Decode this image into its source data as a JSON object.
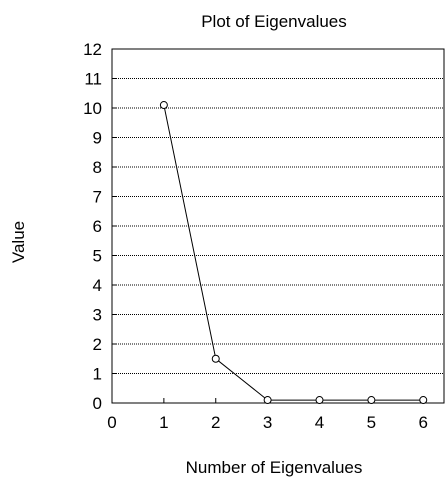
{
  "chart_data": {
    "type": "line",
    "title": "Plot of Eigenvalues",
    "xlabel": "Number of Eigenvalues",
    "ylabel": "Value",
    "xlim": [
      0,
      6.4
    ],
    "ylim": [
      0,
      12
    ],
    "xticks": [
      0,
      1,
      2,
      3,
      4,
      5,
      6
    ],
    "yticks": [
      0,
      1,
      2,
      3,
      4,
      5,
      6,
      7,
      8,
      9,
      10,
      11,
      12
    ],
    "grid": "horizontal dotted",
    "legend": "none",
    "series": [
      {
        "x": [
          1,
          2,
          3,
          4,
          5,
          6
        ],
        "y": [
          10.1,
          1.5,
          0.1,
          0.1,
          0.1,
          0.1
        ]
      }
    ],
    "colors": {
      "line": "#000000",
      "marker_fill": "#ffffff",
      "grid": "#000000"
    }
  }
}
